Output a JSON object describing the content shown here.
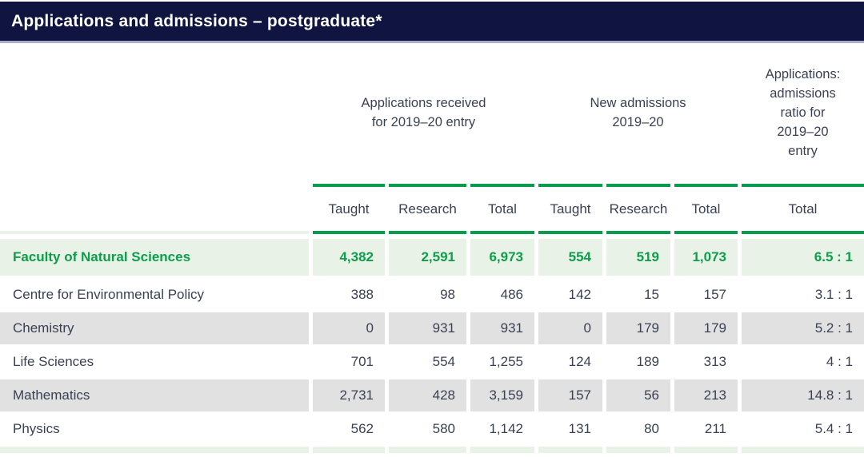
{
  "title_bar": {
    "title": "Applications and admissions – postgraduate*"
  },
  "table": {
    "group_headers": [
      {
        "label": "Applications received\nfor 2019–20 entry"
      },
      {
        "label": "New admissions\n2019–20"
      },
      {
        "label": "Applications:\nadmissions\nratio for\n2019–20\nentry"
      }
    ],
    "column_headers": [
      "Taught",
      "Research",
      "Total",
      "Taught",
      "Research",
      "Total",
      "Total"
    ],
    "rows": [
      {
        "label": "Faculty of Natural Sciences",
        "values": [
          "4,382",
          "2,591",
          "6,973",
          "554",
          "519",
          "1,073",
          "6.5 : 1"
        ]
      },
      {
        "label": "Centre for Environmental Policy",
        "values": [
          "388",
          "98",
          "486",
          "142",
          "15",
          "157",
          "3.1 : 1"
        ]
      },
      {
        "label": "Chemistry",
        "values": [
          "0",
          "931",
          "931",
          "0",
          "179",
          "179",
          "5.2 : 1"
        ]
      },
      {
        "label": "Life Sciences",
        "values": [
          "701",
          "554",
          "1,255",
          "124",
          "189",
          "313",
          "4 : 1"
        ]
      },
      {
        "label": "Mathematics",
        "values": [
          "2,731",
          "428",
          "3,159",
          "157",
          "56",
          "213",
          "14.8 : 1"
        ]
      },
      {
        "label": "Physics",
        "values": [
          "562",
          "580",
          "1,142",
          "131",
          "80",
          "211",
          "5.4 : 1"
        ]
      }
    ]
  },
  "colors": {
    "title_bar_navy": "#101440",
    "accent_green": "#0a9c4d",
    "highlight_pale_green": "#e9f2e7",
    "alt_row_gray": "#e1e1e1",
    "body_text": "#3a4154",
    "title_text": "#ffffff"
  }
}
